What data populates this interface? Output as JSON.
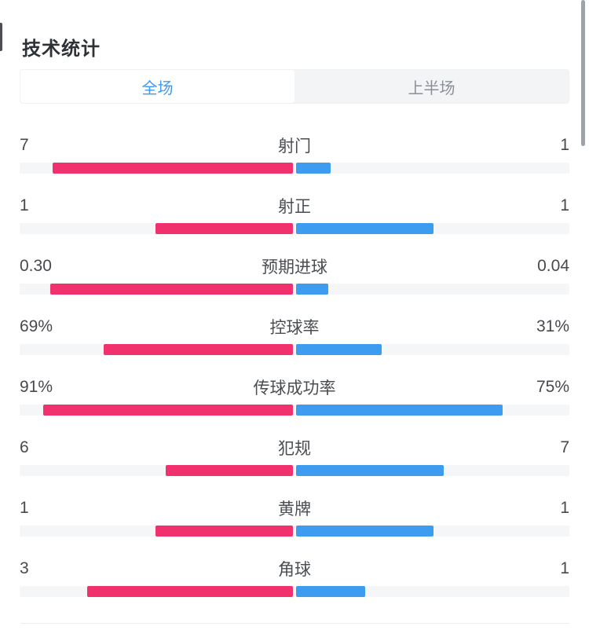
{
  "page": {
    "title": "技术统计"
  },
  "tabs": [
    {
      "label": "全场",
      "active": true
    },
    {
      "label": "上半场",
      "active": false
    }
  ],
  "colors": {
    "home_bar": "#f1316d",
    "away_bar": "#3e9cf0",
    "track": "#f4f6f8",
    "active_tab_text": "#3d9af0",
    "inactive_tab_text": "#8b9098",
    "text": "#47494e"
  },
  "stats": {
    "rows": [
      {
        "label": "射门",
        "home": "7",
        "away": "1",
        "home_pct": 87.5,
        "away_pct": 12.5
      },
      {
        "label": "射正",
        "home": "1",
        "away": "1",
        "home_pct": 50,
        "away_pct": 50
      },
      {
        "label": "预期进球",
        "home": "0.30",
        "away": "0.04",
        "home_pct": 88.2,
        "away_pct": 11.8
      },
      {
        "label": "控球率",
        "home": "69%",
        "away": "31%",
        "home_pct": 69,
        "away_pct": 31
      },
      {
        "label": "传球成功率",
        "home": "91%",
        "away": "75%",
        "home_pct": 91,
        "away_pct": 75
      },
      {
        "label": "犯规",
        "home": "6",
        "away": "7",
        "home_pct": 46.2,
        "away_pct": 53.8
      },
      {
        "label": "黄牌",
        "home": "1",
        "away": "1",
        "home_pct": 50,
        "away_pct": 50
      },
      {
        "label": "角球",
        "home": "3",
        "away": "1",
        "home_pct": 75,
        "away_pct": 25
      }
    ]
  },
  "chart_data": {
    "type": "bar",
    "orientation": "horizontal-paired-center-origin",
    "title": "技术统计",
    "active_tab": "全场",
    "categories": [
      "射门",
      "射正",
      "预期进球",
      "控球率",
      "传球成功率",
      "犯规",
      "黄牌",
      "角球"
    ],
    "series": [
      {
        "name": "left-pink-team",
        "values": [
          7,
          1,
          0.3,
          69,
          91,
          6,
          1,
          3
        ]
      },
      {
        "name": "right-blue-team",
        "values": [
          1,
          1,
          0.04,
          31,
          75,
          7,
          1,
          1
        ]
      }
    ],
    "value_labels_shown": true,
    "legend_position": "none"
  }
}
